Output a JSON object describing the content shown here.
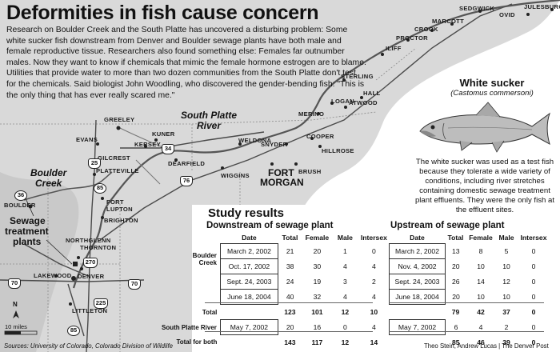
{
  "headline": "Deformities in fish cause concern",
  "intro": "Research on Boulder Creek and the South Platte has uncovered a disturbing problem: Some white sucker fish downstream from Denver and Boulder sewage plants have both male and female reproductive tissue. Researchers also found something else: Females far outnumber males. Now they want to know if chemicals that mimic the female hormone estrogen are to blame. Utilities that provide water to more than two dozen communities from the South Platte don't test for the chemicals. Said biologist John Woodling, who discovered the gender-bending fish: \"This is the only thing that has ever really scared me.\"",
  "map": {
    "towns": {
      "julesburg": "JULESBURG",
      "ovid": "OVID",
      "sedgwick": "SEDGWICK",
      "marcott": "MARCOTT",
      "crook": "CROOK",
      "proctor": "PROCTOR",
      "iliff": "ILIFF",
      "sterling": "STERLING",
      "hall": "HALL",
      "logan": "LOGAN",
      "atwood": "ATWOOD",
      "merino": "MERINO",
      "greeley": "GREELEY",
      "kuner": "KUNER",
      "evans": "EVANS",
      "kersey": "KERSEY",
      "gilcrest": "GILCREST",
      "platteville": "PLATTEVILLE",
      "weldona": "WELDONA",
      "snyder": "SNYDER",
      "cooper": "COOPER",
      "hillrose": "HILLROSE",
      "dearfield": "DEARFIELD",
      "wiggins": "WIGGINS",
      "fort_morgan_1": "FORT",
      "fort_morgan_2": "MORGAN",
      "brush": "BRUSH",
      "fort_lupton_1": "FORT",
      "fort_lupton_2": "LUPTON",
      "brighton": "BRIGHTON",
      "boulder": "BOULDER",
      "northglenn": "NORTHGLENN",
      "thornton": "THORNTON",
      "lakewood": "LAKEWOOD",
      "denver": "DENVER",
      "littleton": "LITTLETON"
    },
    "regions": {
      "south_platte_1": "South Platte",
      "south_platte_2": "River",
      "boulder_creek_1": "Boulder",
      "boulder_creek_2": "Creek",
      "sewage_1": "Sewage",
      "sewage_2": "treatment",
      "sewage_3": "plants"
    },
    "highways": {
      "h25": "25",
      "h34": "34",
      "h76": "76",
      "h85": "85",
      "h36": "36",
      "h270": "270",
      "h70": "70",
      "h225": "225",
      "h70b": "70",
      "h85b": "85"
    },
    "compass": "N",
    "scale_label": "10 miles"
  },
  "fish": {
    "title": "White sucker",
    "scientific": "(Castomus commersoni)",
    "description": "The white sucker was used as a test fish because they tolerate a wide variety of conditions, including river stretches containing domestic sewage treatment plant effluents. They were the only fish at the effluent sites."
  },
  "study": {
    "title": "Study results",
    "downstream": {
      "title": "Downstream of sewage plant",
      "headers": [
        "Date",
        "Total",
        "Female",
        "Male",
        "Intersex"
      ],
      "boulder_label_1": "Boulder",
      "boulder_label_2": "Creek",
      "rows": [
        [
          "March 2, 2002",
          "21",
          "20",
          "1",
          "0"
        ],
        [
          "Oct. 17, 2002",
          "38",
          "30",
          "4",
          "4"
        ],
        [
          "Sept. 24, 2003",
          "24",
          "19",
          "3",
          "2"
        ],
        [
          "June 18, 2004",
          "40",
          "32",
          "4",
          "4"
        ]
      ],
      "total_label": "Total",
      "total": [
        "123",
        "101",
        "12",
        "10"
      ],
      "spr_label": "South Platte River",
      "spr_row": [
        "May 7, 2002",
        "20",
        "16",
        "0",
        "4"
      ],
      "both_label": "Total for both",
      "both": [
        "143",
        "117",
        "12",
        "14"
      ]
    },
    "upstream": {
      "title": "Upstream of sewage plant",
      "headers": [
        "Date",
        "Total",
        "Female",
        "Male",
        "Intersex"
      ],
      "rows": [
        [
          "March 2, 2002",
          "13",
          "8",
          "5",
          "0"
        ],
        [
          "Nov. 4, 2002",
          "20",
          "10",
          "10",
          "0"
        ],
        [
          "Sept. 24, 2003",
          "26",
          "14",
          "12",
          "0"
        ],
        [
          "June 18, 2004",
          "20",
          "10",
          "10",
          "0"
        ]
      ],
      "total": [
        "79",
        "42",
        "37",
        "0"
      ],
      "spr_row": [
        "May 7, 2002",
        "6",
        "4",
        "2",
        "0"
      ],
      "both": [
        "85",
        "46",
        "39",
        "0"
      ]
    }
  },
  "sources": "Sources: University of Colorado, Colorado Division of Wildlife",
  "credit": "Theo Stein, Andrew Lucas | The Denver Post"
}
